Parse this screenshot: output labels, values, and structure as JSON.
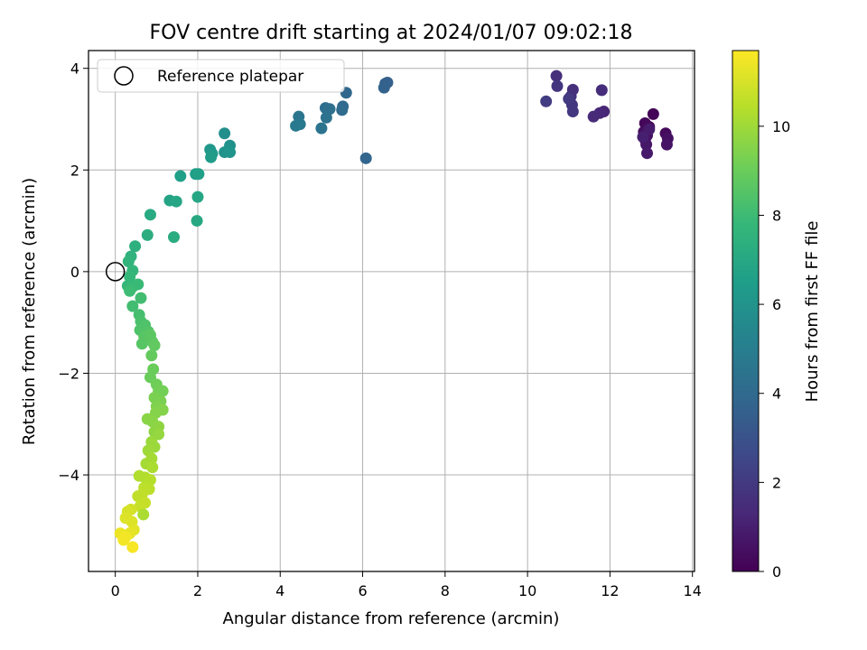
{
  "chart_data": {
    "type": "scatter",
    "title": "FOV centre drift starting at 2024/01/07 09:02:18",
    "xlabel": "Angular distance from reference (arcmin)",
    "ylabel": "Rotation from reference (arcmin)",
    "xlim": [
      -0.65,
      14.05
    ],
    "ylim": [
      -5.9,
      4.35
    ],
    "xticks": [
      0,
      2,
      4,
      6,
      8,
      10,
      12,
      14
    ],
    "yticks": [
      -4,
      -2,
      0,
      2,
      4
    ],
    "grid": true,
    "legend": {
      "placement": "top-left",
      "entries": [
        "Reference platepar"
      ]
    },
    "reference_point": {
      "x": 0,
      "y": 0
    },
    "colorbar": {
      "label": "Hours from first FF file",
      "range": [
        0,
        11.7
      ],
      "ticks": [
        0,
        2,
        4,
        6,
        8,
        10
      ],
      "colormap": "viridis",
      "colors": [
        "#440154",
        "#482878",
        "#3e4989",
        "#31688e",
        "#26828e",
        "#1f9e89",
        "#35b779",
        "#6ece58",
        "#b5de2b",
        "#fde725"
      ]
    },
    "points": [
      {
        "x": 13.05,
        "y": 3.1,
        "t": 0.1
      },
      {
        "x": 12.85,
        "y": 2.92,
        "t": 0.2
      },
      {
        "x": 12.95,
        "y": 2.85,
        "t": 0.3
      },
      {
        "x": 12.82,
        "y": 2.75,
        "t": 0.4
      },
      {
        "x": 12.9,
        "y": 2.68,
        "t": 0.5
      },
      {
        "x": 12.85,
        "y": 2.6,
        "t": 0.6
      },
      {
        "x": 12.88,
        "y": 2.5,
        "t": 0.7
      },
      {
        "x": 12.9,
        "y": 2.33,
        "t": 0.8
      },
      {
        "x": 13.35,
        "y": 2.72,
        "t": 0.3
      },
      {
        "x": 13.4,
        "y": 2.62,
        "t": 0.5
      },
      {
        "x": 13.38,
        "y": 2.5,
        "t": 0.6
      },
      {
        "x": 12.95,
        "y": 2.8,
        "t": 0.9
      },
      {
        "x": 12.8,
        "y": 2.65,
        "t": 1.0
      },
      {
        "x": 11.85,
        "y": 3.15,
        "t": 1.2
      },
      {
        "x": 11.75,
        "y": 3.12,
        "t": 1.3
      },
      {
        "x": 11.6,
        "y": 3.05,
        "t": 1.4
      },
      {
        "x": 11.8,
        "y": 3.57,
        "t": 1.5
      },
      {
        "x": 11.1,
        "y": 3.58,
        "t": 1.6
      },
      {
        "x": 11.05,
        "y": 3.45,
        "t": 1.7
      },
      {
        "x": 11.08,
        "y": 3.28,
        "t": 1.8
      },
      {
        "x": 11.1,
        "y": 3.15,
        "t": 1.9
      },
      {
        "x": 11.0,
        "y": 3.4,
        "t": 2.0
      },
      {
        "x": 10.7,
        "y": 3.85,
        "t": 1.6
      },
      {
        "x": 10.72,
        "y": 3.65,
        "t": 1.8
      },
      {
        "x": 10.45,
        "y": 3.35,
        "t": 2.1
      },
      {
        "x": 6.55,
        "y": 3.7,
        "t": 3.5
      },
      {
        "x": 6.6,
        "y": 3.72,
        "t": 3.6
      },
      {
        "x": 6.52,
        "y": 3.62,
        "t": 3.7
      },
      {
        "x": 6.08,
        "y": 2.23,
        "t": 3.8
      },
      {
        "x": 5.6,
        "y": 3.52,
        "t": 3.9
      },
      {
        "x": 5.52,
        "y": 3.25,
        "t": 4.0
      },
      {
        "x": 5.5,
        "y": 3.18,
        "t": 4.1
      },
      {
        "x": 5.1,
        "y": 3.22,
        "t": 4.2
      },
      {
        "x": 5.2,
        "y": 3.2,
        "t": 4.3
      },
      {
        "x": 5.12,
        "y": 3.03,
        "t": 4.4
      },
      {
        "x": 5.0,
        "y": 2.82,
        "t": 4.5
      },
      {
        "x": 4.45,
        "y": 3.05,
        "t": 4.6
      },
      {
        "x": 4.48,
        "y": 2.9,
        "t": 4.7
      },
      {
        "x": 4.38,
        "y": 2.87,
        "t": 4.8
      },
      {
        "x": 2.65,
        "y": 2.72,
        "t": 5.8
      },
      {
        "x": 2.78,
        "y": 2.48,
        "t": 5.9
      },
      {
        "x": 2.65,
        "y": 2.35,
        "t": 6.0
      },
      {
        "x": 2.78,
        "y": 2.35,
        "t": 6.1
      },
      {
        "x": 2.3,
        "y": 2.4,
        "t": 6.2
      },
      {
        "x": 2.35,
        "y": 2.32,
        "t": 6.3
      },
      {
        "x": 2.32,
        "y": 2.25,
        "t": 6.4
      },
      {
        "x": 1.95,
        "y": 1.92,
        "t": 6.5
      },
      {
        "x": 2.02,
        "y": 1.92,
        "t": 6.6
      },
      {
        "x": 1.58,
        "y": 1.88,
        "t": 6.6
      },
      {
        "x": 1.32,
        "y": 1.4,
        "t": 6.8
      },
      {
        "x": 1.48,
        "y": 1.38,
        "t": 6.9
      },
      {
        "x": 2.0,
        "y": 1.47,
        "t": 6.9
      },
      {
        "x": 1.98,
        "y": 1.0,
        "t": 7.0
      },
      {
        "x": 0.85,
        "y": 1.12,
        "t": 7.1
      },
      {
        "x": 1.42,
        "y": 0.68,
        "t": 7.2
      },
      {
        "x": 0.78,
        "y": 0.72,
        "t": 7.3
      },
      {
        "x": 0.48,
        "y": 0.5,
        "t": 7.4
      },
      {
        "x": 0.38,
        "y": 0.3,
        "t": 7.5
      },
      {
        "x": 0.32,
        "y": 0.2,
        "t": 7.6
      },
      {
        "x": 0.42,
        "y": 0.02,
        "t": 7.7
      },
      {
        "x": 0.35,
        "y": -0.1,
        "t": 7.8
      },
      {
        "x": 0.3,
        "y": -0.28,
        "t": 7.8
      },
      {
        "x": 0.42,
        "y": -0.3,
        "t": 7.9
      },
      {
        "x": 0.55,
        "y": -0.25,
        "t": 7.9
      },
      {
        "x": 0.35,
        "y": -0.38,
        "t": 8.0
      },
      {
        "x": 0.62,
        "y": -0.52,
        "t": 8.1
      },
      {
        "x": 0.42,
        "y": -0.68,
        "t": 8.1
      },
      {
        "x": 0.58,
        "y": -0.85,
        "t": 8.2
      },
      {
        "x": 0.62,
        "y": -0.98,
        "t": 8.3
      },
      {
        "x": 0.72,
        "y": -1.05,
        "t": 8.4
      },
      {
        "x": 0.6,
        "y": -1.15,
        "t": 8.4
      },
      {
        "x": 0.8,
        "y": -1.18,
        "t": 8.5
      },
      {
        "x": 0.7,
        "y": -1.28,
        "t": 8.6
      },
      {
        "x": 0.65,
        "y": -1.42,
        "t": 8.6
      },
      {
        "x": 0.9,
        "y": -1.38,
        "t": 8.7
      },
      {
        "x": 0.85,
        "y": -1.25,
        "t": 8.7
      },
      {
        "x": 0.95,
        "y": -1.45,
        "t": 8.8
      },
      {
        "x": 0.88,
        "y": -1.65,
        "t": 8.9
      },
      {
        "x": 0.92,
        "y": -1.92,
        "t": 9.0
      },
      {
        "x": 0.85,
        "y": -2.08,
        "t": 9.0
      },
      {
        "x": 1.0,
        "y": -2.22,
        "t": 9.1
      },
      {
        "x": 1.05,
        "y": -2.35,
        "t": 9.2
      },
      {
        "x": 1.15,
        "y": -2.35,
        "t": 9.2
      },
      {
        "x": 0.95,
        "y": -2.48,
        "t": 9.3
      },
      {
        "x": 1.1,
        "y": -2.55,
        "t": 9.3
      },
      {
        "x": 1.0,
        "y": -2.65,
        "t": 9.4
      },
      {
        "x": 1.15,
        "y": -2.72,
        "t": 9.5
      },
      {
        "x": 0.98,
        "y": -2.78,
        "t": 9.5
      },
      {
        "x": 0.78,
        "y": -2.9,
        "t": 9.6
      },
      {
        "x": 0.9,
        "y": -2.95,
        "t": 9.6
      },
      {
        "x": 1.05,
        "y": -3.05,
        "t": 9.7
      },
      {
        "x": 0.95,
        "y": -3.15,
        "t": 9.7
      },
      {
        "x": 1.05,
        "y": -3.2,
        "t": 9.8
      },
      {
        "x": 0.88,
        "y": -3.35,
        "t": 9.9
      },
      {
        "x": 0.95,
        "y": -3.45,
        "t": 9.9
      },
      {
        "x": 0.8,
        "y": -3.52,
        "t": 10.0
      },
      {
        "x": 0.88,
        "y": -3.68,
        "t": 10.1
      },
      {
        "x": 0.75,
        "y": -3.78,
        "t": 10.1
      },
      {
        "x": 0.9,
        "y": -3.85,
        "t": 10.2
      },
      {
        "x": 0.58,
        "y": -4.02,
        "t": 10.3
      },
      {
        "x": 0.72,
        "y": -4.05,
        "t": 10.3
      },
      {
        "x": 0.85,
        "y": -4.1,
        "t": 10.4
      },
      {
        "x": 0.7,
        "y": -4.25,
        "t": 10.5
      },
      {
        "x": 0.82,
        "y": -4.28,
        "t": 10.5
      },
      {
        "x": 0.65,
        "y": -4.38,
        "t": 10.6
      },
      {
        "x": 0.55,
        "y": -4.42,
        "t": 10.6
      },
      {
        "x": 0.72,
        "y": -4.55,
        "t": 10.7
      },
      {
        "x": 0.6,
        "y": -4.62,
        "t": 10.7
      },
      {
        "x": 0.68,
        "y": -4.78,
        "t": 10.2
      },
      {
        "x": 0.38,
        "y": -4.68,
        "t": 10.9
      },
      {
        "x": 0.3,
        "y": -4.72,
        "t": 11.0
      },
      {
        "x": 0.25,
        "y": -4.85,
        "t": 11.1
      },
      {
        "x": 0.4,
        "y": -4.92,
        "t": 11.1
      },
      {
        "x": 0.45,
        "y": -5.08,
        "t": 11.2
      },
      {
        "x": 0.35,
        "y": -5.15,
        "t": 11.3
      },
      {
        "x": 0.12,
        "y": -5.15,
        "t": 11.4
      },
      {
        "x": 0.2,
        "y": -5.28,
        "t": 11.5
      },
      {
        "x": 0.25,
        "y": -5.22,
        "t": 11.5
      },
      {
        "x": 0.42,
        "y": -5.42,
        "t": 11.6
      }
    ]
  }
}
